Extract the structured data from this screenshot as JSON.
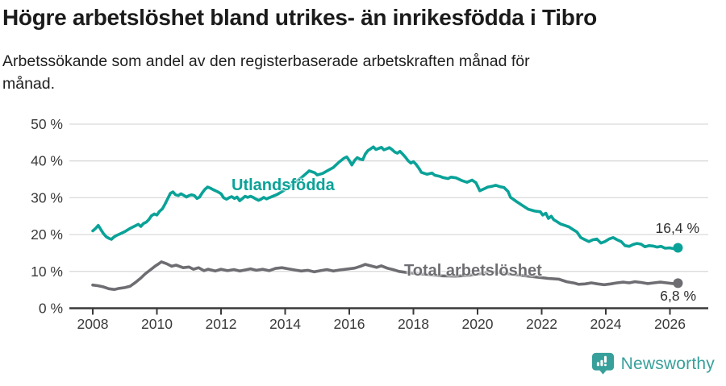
{
  "header": {
    "title": "Högre arbetslöshet bland utrikes- än inrikesfödda i Tibro",
    "subtitle_line1": "Arbetssökande som andel av den registerbaserade arbetskraften månad för",
    "subtitle_line2": "månad."
  },
  "footer": {
    "brand": "Newsworthy"
  },
  "colors": {
    "teal": "#0aa298",
    "gray": "#6d6d72",
    "grid": "#dadada",
    "axis": "#3a3a3a",
    "tick_text": "#3a3a3a",
    "logo": "#38a09b"
  },
  "chart_data": {
    "type": "line",
    "title": "Högre arbetslöshet bland utrikes- än inrikesfödda i Tibro",
    "subtitle": "Arbetssökande som andel av den registerbaserade arbetskraften månad för månad.",
    "xlabel": "",
    "ylabel": "",
    "ylim": [
      0,
      50
    ],
    "xlim": [
      2007.3,
      2027.2
    ],
    "grid": "horizontal",
    "legend_position": "inline-labels",
    "y_ticks": [
      "0 %",
      "10 %",
      "20 %",
      "30 %",
      "40 %",
      "50 %"
    ],
    "y_tick_values": [
      0,
      10,
      20,
      30,
      40,
      50
    ],
    "x_ticks": [
      "2008",
      "2010",
      "2012",
      "2014",
      "2016",
      "2018",
      "2020",
      "2022",
      "2024",
      "2026"
    ],
    "x_tick_years": [
      2008,
      2010,
      2012,
      2014,
      2016,
      2018,
      2020,
      2022,
      2024,
      2026
    ],
    "series": [
      {
        "name": "Utlandsfödda",
        "color": "#0aa298",
        "end_label": "16,4 %",
        "end_value": 16.4,
        "points": [
          [
            2008.0,
            21.0
          ],
          [
            2008.08,
            21.6
          ],
          [
            2008.17,
            22.5
          ],
          [
            2008.25,
            21.4
          ],
          [
            2008.33,
            20.3
          ],
          [
            2008.42,
            19.4
          ],
          [
            2008.5,
            19.0
          ],
          [
            2008.58,
            18.7
          ],
          [
            2008.67,
            19.4
          ],
          [
            2008.75,
            19.8
          ],
          [
            2008.83,
            20.1
          ],
          [
            2009.0,
            20.8
          ],
          [
            2009.17,
            21.7
          ],
          [
            2009.33,
            22.4
          ],
          [
            2009.42,
            22.8
          ],
          [
            2009.5,
            22.2
          ],
          [
            2009.58,
            23.0
          ],
          [
            2009.67,
            23.4
          ],
          [
            2009.75,
            24.1
          ],
          [
            2009.83,
            25.1
          ],
          [
            2009.92,
            25.6
          ],
          [
            2010.0,
            25.3
          ],
          [
            2010.08,
            26.3
          ],
          [
            2010.17,
            27.0
          ],
          [
            2010.25,
            28.2
          ],
          [
            2010.33,
            29.6
          ],
          [
            2010.42,
            31.2
          ],
          [
            2010.5,
            31.6
          ],
          [
            2010.58,
            30.8
          ],
          [
            2010.67,
            30.6
          ],
          [
            2010.75,
            31.1
          ],
          [
            2010.83,
            30.7
          ],
          [
            2010.92,
            30.2
          ],
          [
            2011.0,
            30.6
          ],
          [
            2011.08,
            30.8
          ],
          [
            2011.17,
            30.6
          ],
          [
            2011.25,
            29.8
          ],
          [
            2011.33,
            30.2
          ],
          [
            2011.42,
            31.4
          ],
          [
            2011.5,
            32.3
          ],
          [
            2011.58,
            32.9
          ],
          [
            2011.67,
            32.6
          ],
          [
            2011.75,
            32.2
          ],
          [
            2011.83,
            31.9
          ],
          [
            2011.92,
            31.5
          ],
          [
            2012.0,
            31.1
          ],
          [
            2012.08,
            30.0
          ],
          [
            2012.17,
            29.6
          ],
          [
            2012.25,
            30.0
          ],
          [
            2012.33,
            30.3
          ],
          [
            2012.42,
            29.8
          ],
          [
            2012.5,
            30.2
          ],
          [
            2012.58,
            29.2
          ],
          [
            2012.67,
            29.8
          ],
          [
            2012.75,
            30.4
          ],
          [
            2012.83,
            30.1
          ],
          [
            2012.92,
            30.4
          ],
          [
            2013.0,
            30.1
          ],
          [
            2013.08,
            29.7
          ],
          [
            2013.17,
            29.3
          ],
          [
            2013.25,
            29.6
          ],
          [
            2013.33,
            30.1
          ],
          [
            2013.42,
            29.7
          ],
          [
            2013.5,
            30.0
          ],
          [
            2013.75,
            30.9
          ],
          [
            2014.0,
            32.2
          ],
          [
            2014.25,
            33.8
          ],
          [
            2014.5,
            35.4
          ],
          [
            2014.67,
            36.7
          ],
          [
            2014.75,
            37.3
          ],
          [
            2014.92,
            36.8
          ],
          [
            2015.0,
            36.2
          ],
          [
            2015.17,
            36.6
          ],
          [
            2015.33,
            37.4
          ],
          [
            2015.5,
            38.2
          ],
          [
            2015.67,
            39.6
          ],
          [
            2015.83,
            40.7
          ],
          [
            2015.92,
            41.1
          ],
          [
            2016.0,
            40.1
          ],
          [
            2016.08,
            38.9
          ],
          [
            2016.17,
            40.2
          ],
          [
            2016.25,
            40.9
          ],
          [
            2016.33,
            40.5
          ],
          [
            2016.42,
            40.3
          ],
          [
            2016.5,
            41.9
          ],
          [
            2016.58,
            42.8
          ],
          [
            2016.67,
            43.3
          ],
          [
            2016.75,
            43.8
          ],
          [
            2016.83,
            43.1
          ],
          [
            2016.92,
            43.4
          ],
          [
            2017.0,
            43.7
          ],
          [
            2017.08,
            43.0
          ],
          [
            2017.17,
            43.3
          ],
          [
            2017.25,
            43.6
          ],
          [
            2017.33,
            43.1
          ],
          [
            2017.42,
            42.4
          ],
          [
            2017.5,
            42.1
          ],
          [
            2017.58,
            42.6
          ],
          [
            2017.67,
            41.8
          ],
          [
            2017.75,
            41.0
          ],
          [
            2017.83,
            40.1
          ],
          [
            2017.92,
            39.4
          ],
          [
            2018.0,
            39.8
          ],
          [
            2018.08,
            39.1
          ],
          [
            2018.17,
            38.0
          ],
          [
            2018.25,
            36.9
          ],
          [
            2018.42,
            36.4
          ],
          [
            2018.58,
            36.7
          ],
          [
            2018.67,
            36.1
          ],
          [
            2018.83,
            35.8
          ],
          [
            2018.92,
            35.5
          ],
          [
            2019.08,
            35.2
          ],
          [
            2019.17,
            35.6
          ],
          [
            2019.33,
            35.4
          ],
          [
            2019.5,
            34.7
          ],
          [
            2019.67,
            34.2
          ],
          [
            2019.83,
            34.8
          ],
          [
            2019.95,
            34.1
          ],
          [
            2020.07,
            31.9
          ],
          [
            2020.2,
            32.4
          ],
          [
            2020.32,
            32.9
          ],
          [
            2020.45,
            33.1
          ],
          [
            2020.57,
            33.4
          ],
          [
            2020.7,
            33.0
          ],
          [
            2020.82,
            32.8
          ],
          [
            2020.95,
            31.7
          ],
          [
            2021.03,
            30.1
          ],
          [
            2021.21,
            29.0
          ],
          [
            2021.38,
            28.0
          ],
          [
            2021.58,
            26.9
          ],
          [
            2021.78,
            26.4
          ],
          [
            2021.96,
            26.2
          ],
          [
            2022.03,
            25.3
          ],
          [
            2022.13,
            25.8
          ],
          [
            2022.21,
            24.4
          ],
          [
            2022.3,
            25.0
          ],
          [
            2022.38,
            24.0
          ],
          [
            2022.46,
            23.6
          ],
          [
            2022.58,
            22.9
          ],
          [
            2022.72,
            22.5
          ],
          [
            2022.85,
            22.1
          ],
          [
            2022.97,
            21.4
          ],
          [
            2023.1,
            20.7
          ],
          [
            2023.22,
            19.2
          ],
          [
            2023.35,
            18.6
          ],
          [
            2023.47,
            18.1
          ],
          [
            2023.6,
            18.6
          ],
          [
            2023.72,
            18.8
          ],
          [
            2023.85,
            17.7
          ],
          [
            2023.97,
            18.1
          ],
          [
            2024.1,
            18.8
          ],
          [
            2024.23,
            19.2
          ],
          [
            2024.35,
            18.6
          ],
          [
            2024.48,
            18.1
          ],
          [
            2024.6,
            17.0
          ],
          [
            2024.73,
            16.8
          ],
          [
            2024.85,
            17.3
          ],
          [
            2024.97,
            17.6
          ],
          [
            2025.1,
            17.4
          ],
          [
            2025.22,
            16.7
          ],
          [
            2025.35,
            17.0
          ],
          [
            2025.47,
            16.9
          ],
          [
            2025.6,
            16.6
          ],
          [
            2025.72,
            16.8
          ],
          [
            2025.85,
            16.3
          ],
          [
            2026.0,
            16.4
          ],
          [
            2026.1,
            16.2
          ],
          [
            2026.25,
            16.4
          ]
        ]
      },
      {
        "name": "Total arbetslöshet",
        "color": "#6d6d72",
        "end_label": "6,8 %",
        "end_value": 6.8,
        "points": [
          [
            2008.0,
            6.3
          ],
          [
            2008.17,
            6.1
          ],
          [
            2008.33,
            5.8
          ],
          [
            2008.5,
            5.3
          ],
          [
            2008.67,
            5.1
          ],
          [
            2008.83,
            5.4
          ],
          [
            2009.0,
            5.6
          ],
          [
            2009.17,
            6.0
          ],
          [
            2009.33,
            7.0
          ],
          [
            2009.5,
            8.2
          ],
          [
            2009.63,
            9.3
          ],
          [
            2009.81,
            10.5
          ],
          [
            2009.94,
            11.4
          ],
          [
            2010.06,
            12.1
          ],
          [
            2010.14,
            12.6
          ],
          [
            2010.3,
            12.1
          ],
          [
            2010.46,
            11.4
          ],
          [
            2010.6,
            11.7
          ],
          [
            2010.82,
            11.0
          ],
          [
            2011.0,
            11.2
          ],
          [
            2011.14,
            10.6
          ],
          [
            2011.3,
            11.0
          ],
          [
            2011.47,
            10.2
          ],
          [
            2011.6,
            10.6
          ],
          [
            2011.82,
            10.1
          ],
          [
            2012.0,
            10.6
          ],
          [
            2012.2,
            10.2
          ],
          [
            2012.4,
            10.5
          ],
          [
            2012.58,
            10.1
          ],
          [
            2012.75,
            10.4
          ],
          [
            2012.92,
            10.7
          ],
          [
            2013.1,
            10.3
          ],
          [
            2013.3,
            10.6
          ],
          [
            2013.5,
            10.2
          ],
          [
            2013.7,
            10.8
          ],
          [
            2013.9,
            11.0
          ],
          [
            2014.1,
            10.7
          ],
          [
            2014.3,
            10.4
          ],
          [
            2014.5,
            10.1
          ],
          [
            2014.7,
            10.3
          ],
          [
            2014.9,
            9.9
          ],
          [
            2015.1,
            10.2
          ],
          [
            2015.3,
            10.5
          ],
          [
            2015.5,
            10.1
          ],
          [
            2015.7,
            10.4
          ],
          [
            2015.9,
            10.6
          ],
          [
            2016.17,
            10.9
          ],
          [
            2016.35,
            11.4
          ],
          [
            2016.5,
            11.9
          ],
          [
            2016.67,
            11.5
          ],
          [
            2016.85,
            11.1
          ],
          [
            2017.0,
            11.5
          ],
          [
            2017.18,
            10.9
          ],
          [
            2017.36,
            10.5
          ],
          [
            2017.55,
            10.0
          ],
          [
            2017.8,
            9.7
          ],
          [
            2018.1,
            9.4
          ],
          [
            2018.5,
            9.1
          ],
          [
            2018.9,
            8.8
          ],
          [
            2019.3,
            8.7
          ],
          [
            2019.7,
            8.9
          ],
          [
            2020.1,
            9.4
          ],
          [
            2020.4,
            9.9
          ],
          [
            2020.7,
            9.7
          ],
          [
            2021.1,
            9.2
          ],
          [
            2021.5,
            8.8
          ],
          [
            2021.9,
            8.4
          ],
          [
            2022.2,
            8.1
          ],
          [
            2022.53,
            7.9
          ],
          [
            2022.78,
            7.2
          ],
          [
            2023.03,
            6.8
          ],
          [
            2023.15,
            6.5
          ],
          [
            2023.35,
            6.6
          ],
          [
            2023.55,
            6.9
          ],
          [
            2023.75,
            6.6
          ],
          [
            2023.95,
            6.4
          ],
          [
            2024.15,
            6.6
          ],
          [
            2024.35,
            6.9
          ],
          [
            2024.55,
            7.1
          ],
          [
            2024.73,
            6.9
          ],
          [
            2024.9,
            7.2
          ],
          [
            2025.1,
            7.0
          ],
          [
            2025.3,
            6.7
          ],
          [
            2025.5,
            6.9
          ],
          [
            2025.7,
            7.1
          ],
          [
            2025.9,
            6.9
          ],
          [
            2026.1,
            6.7
          ],
          [
            2026.25,
            6.8
          ]
        ]
      }
    ]
  }
}
